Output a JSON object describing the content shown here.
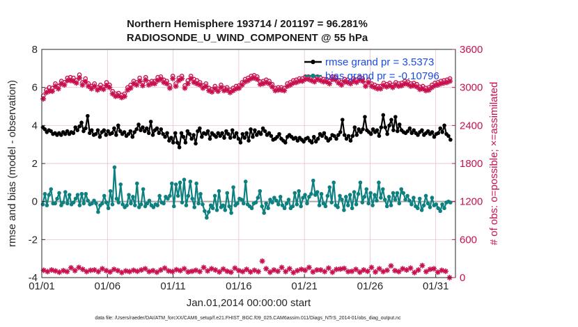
{
  "chart_data": {
    "type": "line",
    "title": [
      "Northern Hemisphere 193714 / 201197 = 96.281%",
      "RADIOSONDE_U_WIND_COMPONENT @ 55 hPa"
    ],
    "xlabel": "Jan.01,2014 00:00:00 start",
    "ylabel": "rmse and bias (model - observation)",
    "ylabel_right": "# of obs: o=possible; ×=assimilated",
    "footer": "data file: /Users/raeder/DAI/ATM_forcXX/CAM6_setup/f.e21.FHIST_BGC.f09_025.CAM6assim.011/Diags_NTrS_2014-01/obs_diag_output.nc",
    "xlim": [
      0,
      31.5
    ],
    "ylim": [
      -4,
      8
    ],
    "ylim_right": [
      0,
      3600
    ],
    "x_ticks": [
      0,
      5,
      10,
      15,
      20,
      25,
      30
    ],
    "x_tick_labels": [
      "01/01",
      "01/06",
      "01/11",
      "01/16",
      "01/21",
      "01/26",
      "01/31"
    ],
    "y_ticks": [
      -4,
      -2,
      0,
      2,
      4,
      6,
      8
    ],
    "y_tick_labels": [
      "-4",
      "-2",
      "0",
      "2",
      "4",
      "6",
      "8"
    ],
    "y_ticks_right": [
      0,
      600,
      1200,
      1800,
      2400,
      3000,
      3600
    ],
    "y_tick_labels_right": [
      "0",
      "600",
      "1200",
      "1800",
      "2400",
      "3000",
      "3600"
    ],
    "grid": true,
    "legend": {
      "position": "top-right",
      "entries": [
        "rmse grand pr = 3.5373",
        "bias grand pr = -0.10796"
      ]
    },
    "colors": {
      "rmse": "#000000",
      "bias": "#0e8080",
      "obs": "#c8104f",
      "zero_line": "#a6a6a6",
      "grid": "#e6b8c8"
    },
    "series": [
      {
        "name": "rmse",
        "color": "#000000",
        "values": [
          3.9,
          3.8,
          3.65,
          3.75,
          3.7,
          3.55,
          3.6,
          3.5,
          3.6,
          3.5,
          3.65,
          3.55,
          3.7,
          3.55,
          3.65,
          3.6,
          3.9,
          3.75,
          3.95,
          4.15,
          3.7,
          3.85,
          4.5,
          3.6,
          3.75,
          3.5,
          3.55,
          3.75,
          3.4,
          3.65,
          3.75,
          3.5,
          3.7,
          3.55,
          3.6,
          3.85,
          3.5,
          4.0,
          3.7,
          3.55,
          3.65,
          3.45,
          3.55,
          3.7,
          3.4,
          3.65,
          3.8,
          4.05,
          3.75,
          3.9,
          3.7,
          3.85,
          3.6,
          4.2,
          3.5,
          3.75,
          3.85,
          3.6,
          3.8,
          3.55,
          3.4,
          3.6,
          3.2,
          3.35,
          3.1,
          3.6,
          3.1,
          2.85,
          3.6,
          3.4,
          3.1,
          3.7,
          3.55,
          3.3,
          3.5,
          3.05,
          3.7,
          3.85,
          3.4,
          3.6,
          3.55,
          3.7,
          3.3,
          3.6,
          3.5,
          3.4,
          3.6,
          3.45,
          3.6,
          3.35,
          3.7,
          3.55,
          3.35,
          3.75,
          3.4,
          3.6,
          3.3,
          3.1,
          3.55,
          3.35,
          3.6,
          3.2,
          3.8,
          3.4,
          3.75,
          3.5,
          3.65,
          3.55,
          3.85,
          3.7,
          3.5,
          3.6,
          3.45,
          3.25,
          3.3,
          3.4,
          3.55,
          3.3,
          3.2,
          3.1,
          3.4,
          3.5,
          3.4,
          3.3,
          3.35,
          3.2,
          3.35,
          3.25,
          3.15,
          3.3,
          3.35,
          3.2,
          3.1,
          3.4,
          3.15,
          3.3,
          3.55,
          3.45,
          3.6,
          3.35,
          3.2,
          3.3,
          3.5,
          3.45,
          3.3,
          3.5,
          3.65,
          4.3,
          3.5,
          3.3,
          3.45,
          3.2,
          3.45,
          3.9,
          3.5,
          3.8,
          3.65,
          3.8,
          4.45,
          3.75,
          3.65,
          3.55,
          3.8,
          3.65,
          3.75,
          3.45,
          3.9,
          4.55,
          3.9,
          3.55,
          4.0,
          4.3,
          3.75,
          4.45,
          3.7,
          4.05,
          3.75,
          3.65,
          3.6,
          3.7,
          3.85,
          3.6,
          3.75,
          3.6,
          3.5,
          3.65,
          3.75,
          3.5,
          3.6,
          3.7,
          3.55,
          3.65,
          3.4,
          3.55,
          3.6,
          3.85,
          3.65,
          4.0,
          3.55,
          3.45,
          3.25
        ]
      },
      {
        "name": "bias",
        "color": "#0e8080",
        "values": [
          -0.15,
          0.4,
          -0.2,
          0.35,
          0.65,
          -0.1,
          -0.1,
          0.15,
          0.45,
          -0.2,
          -0.05,
          0.5,
          -0.1,
          0.35,
          -0.15,
          -0.05,
          0.15,
          0.35,
          -0.2,
          0.4,
          -0.1,
          0.4,
          0.05,
          -0.15,
          -0.1,
          0.05,
          -0.1,
          -0.55,
          -0.2,
          -0.1,
          0.3,
          -0.05,
          -0.35,
          0.55,
          -0.15,
          1.8,
          0.15,
          -0.05,
          0.9,
          -0.15,
          -0.3,
          -0.2,
          0.35,
          -0.1,
          0.25,
          -0.2,
          0.95,
          -0.3,
          -0.15,
          0.65,
          -0.25,
          -0.1,
          0.05,
          -0.2,
          -0.3,
          -0.15,
          -0.2,
          0.3,
          -0.05,
          -0.1,
          0.25,
          0.15,
          0.3,
          0.95,
          -0.25,
          0.9,
          0.3,
          1.0,
          -0.05,
          1.15,
          -0.2,
          0.3,
          1.05,
          0.15,
          -0.3,
          0.95,
          -0.1,
          0.4,
          -0.15,
          -0.5,
          -0.85,
          -0.55,
          -0.2,
          -0.35,
          0.3,
          -0.45,
          0.55,
          -0.3,
          -0.2,
          -0.45,
          0.45,
          -0.25,
          -0.6,
          0.75,
          -0.2,
          -0.1,
          0.15,
          0.1,
          -0.1,
          1.05,
          -0.15,
          -0.25,
          -0.35,
          -0.1,
          -0.05,
          0.2,
          0.55,
          -0.25,
          -0.6,
          -0.1,
          -0.35,
          0.1,
          -0.05,
          0.2,
          0.05,
          -0.15,
          0.25,
          -0.2,
          -0.35,
          -0.1,
          0.1,
          -0.35,
          -0.25,
          0.45,
          -0.15,
          0.55,
          -0.25,
          0.2,
          0.35,
          -0.1,
          0.25,
          0.4,
          1.1,
          0.35,
          0.5,
          -0.2,
          0.4,
          -0.1,
          -0.25,
          0.3,
          0.75,
          -0.05,
          1.0,
          -0.2,
          -0.3,
          0.3,
          0.1,
          -0.45,
          0.25,
          -0.2,
          0.35,
          -0.35,
          0.5,
          -0.15,
          0.4,
          1.0,
          -0.05,
          0.25,
          0.65,
          -0.1,
          0.45,
          -0.2,
          0.35,
          0.05,
          1.0,
          0.2,
          0.65,
          0.1,
          -0.25,
          0.25,
          -0.2,
          0.45,
          0.1,
          0.45,
          -0.1,
          0.65,
          0.45,
          0.1,
          0.3,
          0.05,
          -0.15,
          0.2,
          -0.25,
          -0.35,
          0.15,
          -0.45,
          -0.2,
          0.3,
          -0.1,
          -0.3,
          0.2,
          -0.2,
          -0.15,
          -0.35,
          -0.5,
          -0.15,
          -0.35,
          -0.05,
          0.0,
          -0.05
        ]
      },
      {
        "name": "possible",
        "color": "#c8104f",
        "axis": "right",
        "marker": "circle",
        "values": [
          2870,
          2960,
          3000,
          2990,
          3060,
          3020,
          3100,
          3080,
          3150,
          3160,
          3150,
          3110,
          3200,
          3080,
          3140,
          3060,
          3020,
          3060,
          3000,
          3040,
          3010,
          3080,
          3040,
          2940,
          2900,
          2910,
          2880,
          2900,
          3000,
          3040,
          3100,
          3080,
          3150,
          3070,
          3160,
          3080,
          3100,
          3100,
          3160,
          3170,
          3120,
          3100,
          3030,
          3180,
          3060,
          3150,
          3180,
          3030,
          3110,
          3180,
          3130,
          3110,
          3080,
          3030,
          3060,
          2990,
          2970,
          3020,
          2980,
          3040,
          2990,
          3000,
          2960,
          2990,
          3020,
          3030,
          3080,
          3130,
          3150,
          3180,
          3190,
          3170,
          3090,
          3100,
          3120,
          3100,
          3050,
          2990,
          3000,
          3000,
          2990,
          3060,
          3080,
          3110,
          3120,
          3140,
          3140,
          3170,
          3170,
          3150,
          3130,
          3170,
          3150,
          3130,
          3130,
          3100,
          3170,
          3160,
          3110,
          3080,
          3130,
          3120,
          3100,
          3140,
          3120,
          3160,
          3140,
          3060,
          3120,
          3060,
          3040,
          3020,
          3020,
          3070,
          3050,
          3070,
          3040,
          3080,
          3060,
          3070,
          3100,
          3090,
          3060,
          3070,
          3050,
          3010,
          3020,
          2990,
          3000,
          3040,
          3070,
          3080,
          3100,
          3110,
          3120,
          3140
        ]
      },
      {
        "name": "assimilated",
        "color": "#c8104f",
        "axis": "right",
        "marker": "asterisk",
        "values": [
          2820,
          2920,
          2940,
          2940,
          3020,
          2980,
          3060,
          3040,
          3110,
          3110,
          3100,
          3070,
          3150,
          3040,
          3090,
          3020,
          2980,
          3020,
          2960,
          2990,
          2970,
          3030,
          3000,
          2900,
          2860,
          2870,
          2840,
          2860,
          2960,
          2990,
          3060,
          3040,
          3100,
          3030,
          3120,
          3040,
          3060,
          3060,
          3110,
          3130,
          3080,
          3060,
          2990,
          3140,
          3020,
          3110,
          3140,
          2990,
          3060,
          3140,
          3080,
          3060,
          3040,
          2990,
          3020,
          2950,
          2930,
          2980,
          2940,
          3000,
          2950,
          2960,
          2920,
          2950,
          2980,
          2990,
          3040,
          3090,
          3110,
          3140,
          3150,
          3130,
          3050,
          3060,
          3080,
          3060,
          3010,
          2950,
          2960,
          2960,
          2950,
          3020,
          3040,
          3070,
          3080,
          3100,
          3100,
          3130,
          3130,
          3110,
          3090,
          3130,
          3110,
          3090,
          3090,
          3060,
          3130,
          3120,
          3070,
          3040,
          3090,
          3080,
          3060,
          3100,
          3080,
          3120,
          3100,
          3020,
          3080,
          3020,
          3000,
          2980,
          2980,
          3030,
          3010,
          3030,
          3000,
          3040,
          3020,
          3030,
          3060,
          3050,
          3020,
          3030,
          3010,
          2970,
          2980,
          2950,
          2960,
          3000,
          3030,
          3040,
          3060,
          3070,
          3080,
          3100
        ]
      },
      {
        "name": "obs_count_low",
        "color": "#c8104f",
        "axis": "right",
        "marker": "asterisk",
        "values": [
          115,
          95,
          120,
          105,
          85,
          110,
          95,
          155,
          110,
          160,
          130,
          95,
          115,
          120,
          95,
          140,
          110,
          90,
          130,
          110,
          80,
          105,
          95,
          115,
          100,
          120,
          140,
          95,
          110,
          85,
          120,
          150,
          105,
          95,
          125,
          110,
          140,
          90,
          100,
          115,
          95,
          160,
          105,
          140,
          120,
          90,
          135,
          100,
          85,
          150,
          110,
          95,
          130,
          90,
          115,
          95,
          260,
          140,
          85,
          120,
          100,
          160,
          95,
          140,
          80,
          110,
          130,
          115,
          160,
          90,
          120,
          120,
          95,
          150,
          85,
          130,
          135,
          145,
          95,
          100,
          130,
          85,
          120,
          100,
          160,
          90,
          140,
          95,
          115,
          185,
          110,
          95,
          140,
          120,
          150,
          80,
          120,
          190,
          95,
          130,
          140,
          85,
          115,
          100,
          0
        ]
      }
    ]
  }
}
